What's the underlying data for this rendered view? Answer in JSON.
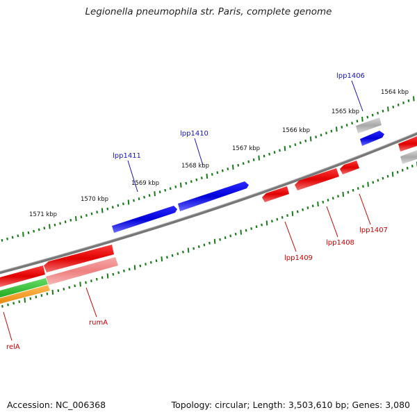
{
  "title": "Legionella pneumophila str. Paris, complete genome",
  "footer": {
    "accession": "Accession: NC_006368",
    "summary": "Topology: circular; Length: 3,503,610 bp; Genes: 3,080"
  },
  "colors": {
    "backbone": "#7a7a7a",
    "tick": "#1a7a1a",
    "forward_gene": "#0a0ad8",
    "reverse_gene": "#e60000",
    "pseudo_gene": "#b0b0b0",
    "rna_pale": "#f08c8c",
    "green_feature": "#33bb33",
    "orange_feature": "#f39a1b",
    "forward_label": "#1515c8",
    "reverse_label": "#cc0000",
    "kbp_label": "#111111"
  },
  "kbp_labels": [
    "1571 kbp",
    "1570 kbp",
    "1569 kbp",
    "1568 kbp",
    "1567 kbp",
    "1566 kbp",
    "1565 kbp",
    "1564 kbp"
  ],
  "forward_gene_labels": [
    "lpp1406",
    "lpp1410",
    "lpp1411"
  ],
  "reverse_gene_labels": [
    "lpp1407",
    "lpp1408",
    "lpp1409",
    "rumA",
    "relA"
  ]
}
